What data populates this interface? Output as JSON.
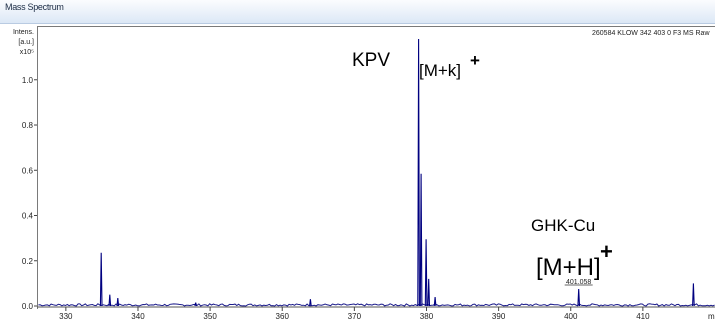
{
  "window": {
    "title": "Mass Spectrum"
  },
  "chart_data": {
    "type": "line",
    "header_text": "260584 KLOW 342 403 0 F3 MS Raw",
    "ylabel_lines": [
      "Intens.",
      "[a.u.]",
      "x10⁵"
    ],
    "xlabel": "m",
    "xlim": [
      326,
      420
    ],
    "ylim": [
      0,
      1.22
    ],
    "x_ticks": [
      330,
      340,
      350,
      360,
      370,
      380,
      390,
      400,
      410
    ],
    "y_ticks": [
      0.0,
      0.2,
      0.4,
      0.6,
      0.8,
      1.0
    ],
    "y_tick_labels": [
      "0.0",
      "0.2",
      "0.4",
      "0.6",
      "0.8",
      "1.0"
    ],
    "peaks": [
      {
        "x": 334.9,
        "y": 0.235
      },
      {
        "x": 336.1,
        "y": 0.05
      },
      {
        "x": 337.2,
        "y": 0.035
      },
      {
        "x": 348.0,
        "y": 0.015
      },
      {
        "x": 363.9,
        "y": 0.03
      },
      {
        "x": 378.9,
        "y": 1.18
      },
      {
        "x": 379.25,
        "y": 0.585
      },
      {
        "x": 379.95,
        "y": 0.295
      },
      {
        "x": 380.3,
        "y": 0.12
      },
      {
        "x": 381.2,
        "y": 0.04
      },
      {
        "x": 401.1,
        "y": 0.075
      },
      {
        "x": 417.0,
        "y": 0.1
      }
    ],
    "annotations": {
      "kpv": "KPV",
      "mk": "[M+k]",
      "mk_sup": "+",
      "ghk": "GHK-Cu",
      "mh": "[M+H]",
      "mh_sup": "+",
      "peak_label": "401.058"
    },
    "colors": {
      "trace": "#000080",
      "baseline": "#1a1a8a"
    }
  }
}
